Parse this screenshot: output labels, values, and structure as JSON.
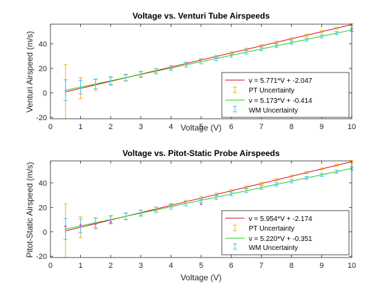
{
  "chart_data": [
    {
      "type": "line",
      "title": "Voltage vs. Venturi Tube Airspeeds",
      "xlabel": "Voltage (V)",
      "ylabel": "Venturi Airspeed (m/s)",
      "xlim": [
        0,
        10
      ],
      "ylim": [
        -21,
        56
      ],
      "xticks": [
        0,
        1,
        2,
        3,
        4,
        5,
        6,
        7,
        8,
        9,
        10
      ],
      "yticks": [
        -20,
        0,
        20,
        40
      ],
      "grid": false,
      "legend_position": "bottom-right",
      "legend": [
        "v = 5.771*V + -2.047",
        "PT Uncertainty",
        "v = 5.173*V + -0.414",
        "WM Uncertainty"
      ],
      "fits": [
        {
          "name": "v = 5.771*V + -2.047",
          "slope": 5.771,
          "intercept": -2.047,
          "x_range": [
            0.5,
            10
          ],
          "color": "#e0001a"
        },
        {
          "name": "v = 5.173*V + -0.414",
          "slope": 5.173,
          "intercept": -0.414,
          "x_range": [
            0.5,
            10
          ],
          "color": "#17d117"
        }
      ],
      "series": [
        {
          "name": "PT Uncertainty",
          "color": "#edb120",
          "x": [
            0.5,
            1,
            1.5,
            2,
            2.5,
            3,
            3.5,
            4,
            4.5,
            5,
            5.5,
            6,
            6.5,
            7,
            7.5,
            8,
            8.5,
            9,
            9.5,
            10
          ],
          "y": [
            1.0,
            3.8,
            6.6,
            9.5,
            12.4,
            15.3,
            18.2,
            21.0,
            23.9,
            26.8,
            29.7,
            32.6,
            35.5,
            38.4,
            41.2,
            44.1,
            47.0,
            49.9,
            52.8,
            55.7
          ],
          "err": [
            22,
            8.5,
            4.5,
            3.2,
            2.4,
            1.9,
            1.6,
            1.4,
            1.2,
            1.1,
            1.0,
            1.0,
            0.9,
            0.9,
            0.9,
            0.8,
            0.8,
            0.8,
            0.8,
            0.8
          ]
        },
        {
          "name": "WM Uncertainty",
          "color": "#4dbeee",
          "x": [
            0.5,
            1,
            1.5,
            2,
            2.5,
            3,
            3.5,
            4,
            4.5,
            5,
            5.5,
            6,
            6.5,
            7,
            7.5,
            8,
            8.5,
            9,
            9.5,
            10
          ],
          "y": [
            2.2,
            4.8,
            7.4,
            10.0,
            12.5,
            15.1,
            17.7,
            20.3,
            22.9,
            25.5,
            28.0,
            30.6,
            33.2,
            35.8,
            38.4,
            41.0,
            43.5,
            46.1,
            48.7,
            51.3
          ],
          "err": [
            8.5,
            5.5,
            4.0,
            3.2,
            2.8,
            2.5,
            2.2,
            2.0,
            1.9,
            1.8,
            1.7,
            1.6,
            1.5,
            1.5,
            1.4,
            1.4,
            1.3,
            1.3,
            1.3,
            1.2
          ]
        }
      ]
    },
    {
      "type": "line",
      "title": "Voltage vs. Pitot-Static Probe Airspeeds",
      "xlabel": "Voltage (V)",
      "ylabel": "Pitot-Static Airspeed (m/s)",
      "xlim": [
        0,
        10
      ],
      "ylim": [
        -21,
        58
      ],
      "xticks": [
        0,
        1,
        2,
        3,
        4,
        5,
        6,
        7,
        8,
        9,
        10
      ],
      "yticks": [
        -20,
        0,
        20,
        40
      ],
      "grid": false,
      "legend_position": "bottom-right",
      "legend": [
        "v = 5.954*V + -2.174",
        "PT Uncertainty",
        "v = 5.220*V + -0.351",
        "WM Uncertainty"
      ],
      "fits": [
        {
          "name": "v = 5.954*V + -2.174",
          "slope": 5.954,
          "intercept": -2.174,
          "x_range": [
            0.5,
            10
          ],
          "color": "#e0001a"
        },
        {
          "name": "v = 5.220*V + -0.351",
          "slope": 5.22,
          "intercept": -0.351,
          "x_range": [
            0.5,
            10
          ],
          "color": "#17d117"
        }
      ],
      "series": [
        {
          "name": "PT Uncertainty",
          "color": "#edb120",
          "x": [
            0.5,
            1,
            1.5,
            2,
            2.5,
            3,
            3.5,
            4,
            4.5,
            5,
            5.5,
            6,
            6.5,
            7,
            7.5,
            8,
            8.5,
            9,
            9.5,
            10
          ],
          "y": [
            1.0,
            3.8,
            6.8,
            9.7,
            12.7,
            15.7,
            18.7,
            21.6,
            24.6,
            27.6,
            30.6,
            33.5,
            36.5,
            39.5,
            42.5,
            45.5,
            48.4,
            51.4,
            54.4,
            57.4
          ],
          "err": [
            22,
            8.5,
            4.5,
            3.2,
            2.4,
            1.9,
            1.6,
            1.4,
            1.2,
            1.1,
            1.0,
            1.0,
            0.9,
            0.9,
            0.9,
            0.8,
            0.8,
            0.8,
            0.8,
            0.8
          ]
        },
        {
          "name": "WM Uncertainty",
          "color": "#4dbeee",
          "x": [
            0.5,
            1,
            1.5,
            2,
            2.5,
            3,
            3.5,
            4,
            4.5,
            5,
            5.5,
            6,
            6.5,
            7,
            7.5,
            8,
            8.5,
            9,
            9.5,
            10
          ],
          "y": [
            2.3,
            4.9,
            7.5,
            10.1,
            12.7,
            15.3,
            17.9,
            20.5,
            23.1,
            25.7,
            28.4,
            31.0,
            33.6,
            36.2,
            38.8,
            41.4,
            44.0,
            46.6,
            49.2,
            51.8
          ],
          "err": [
            8.5,
            5.5,
            4.0,
            3.2,
            2.8,
            2.5,
            2.2,
            2.0,
            1.9,
            1.8,
            1.7,
            1.6,
            1.5,
            1.5,
            1.4,
            1.4,
            1.3,
            1.3,
            1.3,
            1.2
          ]
        },
        {
          "name": "",
          "type": "scatter",
          "color": "#e040e0",
          "x": [
            0.5,
            1,
            1.5,
            2,
            5
          ],
          "y": [
            4.5,
            5.5,
            6.5,
            8.0,
            22.5
          ]
        }
      ]
    }
  ]
}
